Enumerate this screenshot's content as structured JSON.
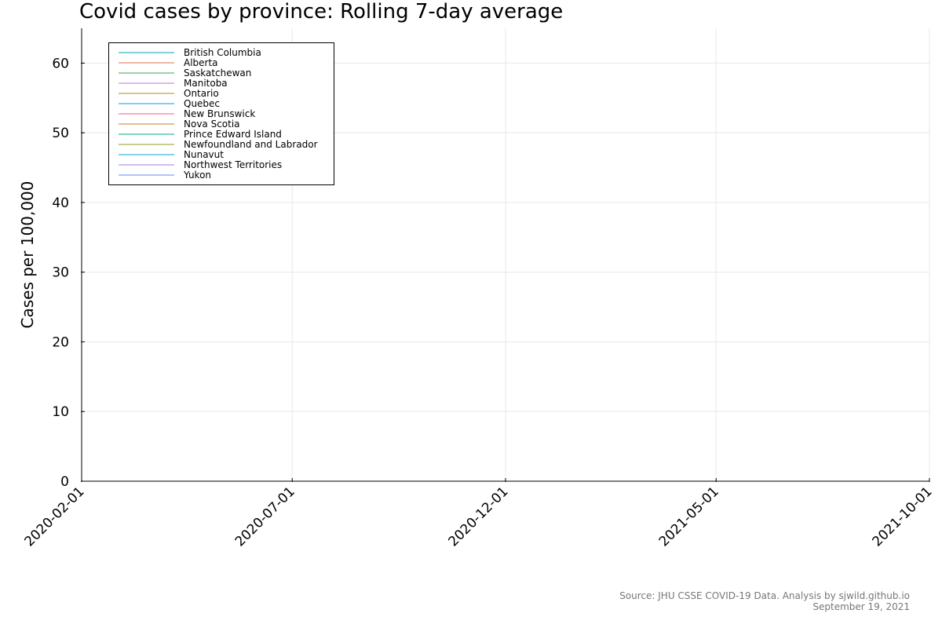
{
  "chart_data": {
    "type": "line",
    "title": "Covid cases by province: Rolling 7-day average",
    "xlabel": "",
    "ylabel": "Cases per 100,000",
    "xlim": [
      "2020-02-01",
      "2021-10-01"
    ],
    "ylim": [
      0,
      65
    ],
    "x_ticks": [
      "2020-02-01",
      "2020-07-01",
      "2020-12-01",
      "2021-05-01",
      "2021-10-01"
    ],
    "y_ticks": [
      0,
      10,
      20,
      30,
      40,
      50,
      60
    ],
    "grid": true,
    "legend_position": "top-left",
    "series": [
      {
        "name": "British Columbia",
        "color": "#00a9ad",
        "values": []
      },
      {
        "name": "Alberta",
        "color": "#e26f46",
        "values": []
      },
      {
        "name": "Saskatchewan",
        "color": "#3da44d",
        "values": []
      },
      {
        "name": "Manitoba",
        "color": "#c271d2",
        "values": []
      },
      {
        "name": "Ontario",
        "color": "#ac8d18",
        "values": []
      },
      {
        "name": "Quebec",
        "color": "#009af9",
        "values": []
      },
      {
        "name": "New Brunswick",
        "color": "#ed5d92",
        "values": []
      },
      {
        "name": "Nova Scotia",
        "color": "#c68125",
        "values": []
      },
      {
        "name": "Prince Edward Island",
        "color": "#00a98d",
        "values": []
      },
      {
        "name": "Newfoundland and Labrador",
        "color": "#8e971e",
        "values": []
      },
      {
        "name": "Nunavut",
        "color": "#00a8cb",
        "values": []
      },
      {
        "name": "Northwest Territories",
        "color": "#9b7fe9",
        "values": []
      },
      {
        "name": "Yukon",
        "color": "#618df6",
        "values": []
      }
    ]
  },
  "source": {
    "line1": "Source: JHU CSSE COVID-19 Data. Analysis by sjwild.github.io",
    "line2": "September 19, 2021"
  }
}
